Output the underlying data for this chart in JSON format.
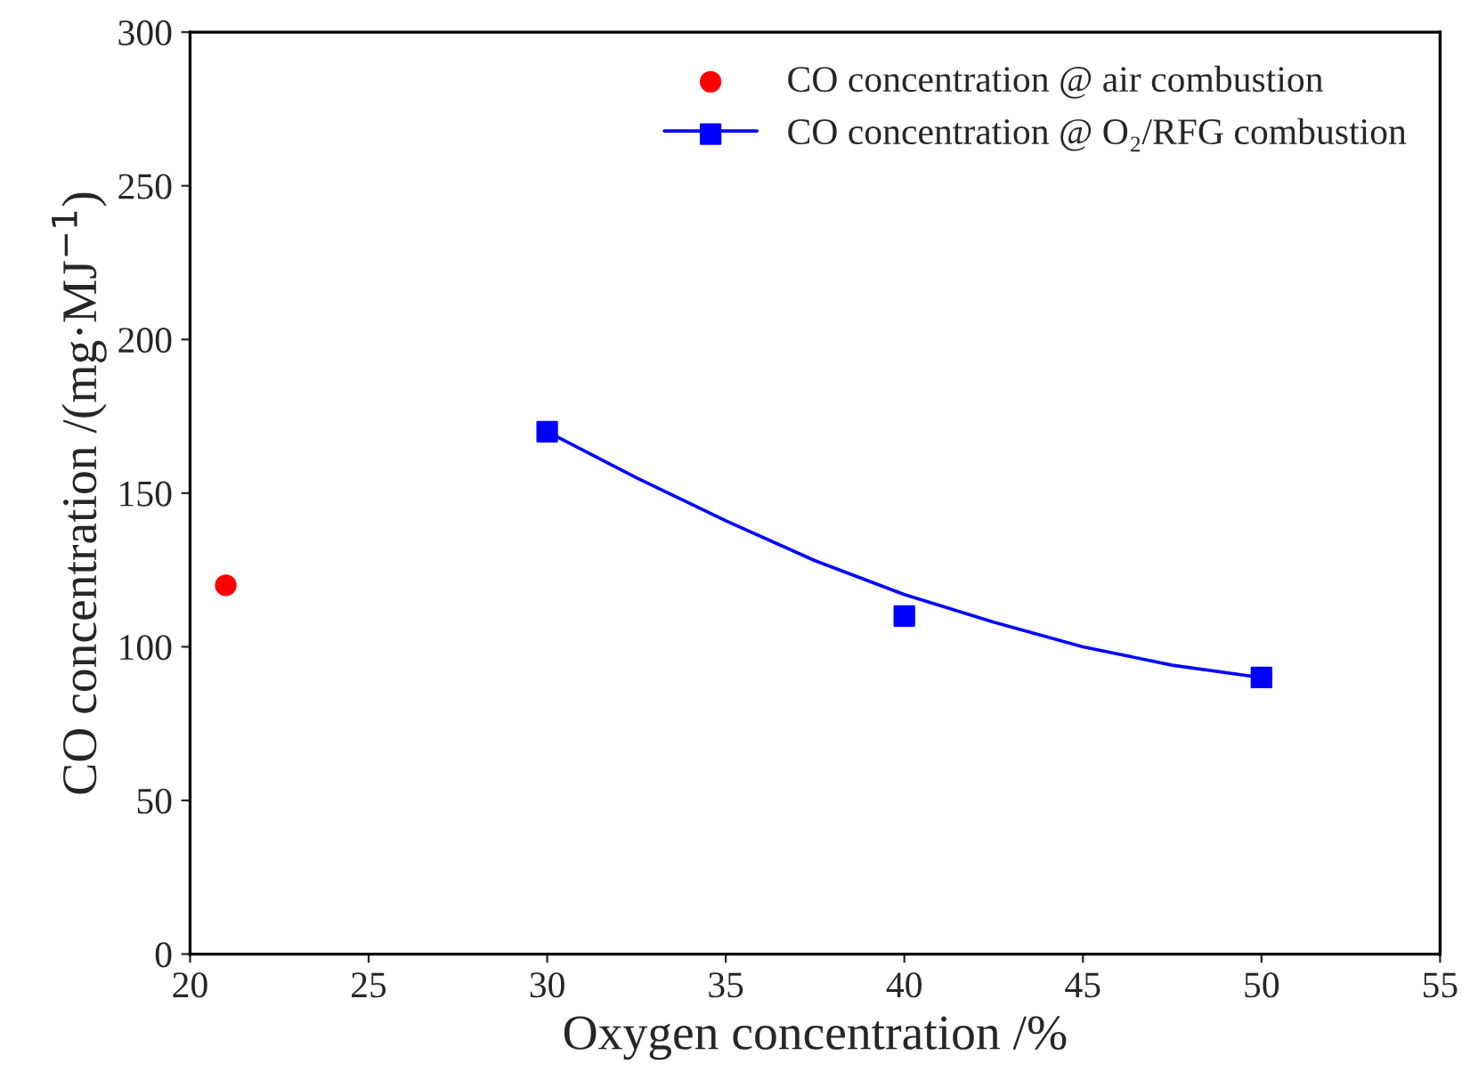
{
  "chart_data": {
    "type": "scatter",
    "xlabel": "Oxygen concentration /%",
    "ylabel": "CO concentration /(mg·MJ$^{−1}$)",
    "xlim": [
      20,
      55
    ],
    "xticks": [
      20,
      25,
      30,
      35,
      40,
      45,
      50,
      55
    ],
    "ylim": [
      0,
      300
    ],
    "yticks": [
      0,
      50,
      100,
      150,
      200,
      250,
      300
    ],
    "grid": false,
    "legend": "top right",
    "series": [
      {
        "name": "CO concentration @ air combustion",
        "marker": "circle",
        "color": "#ff0000",
        "x": [
          21
        ],
        "values": [
          120
        ]
      },
      {
        "name": "CO concentration @ O₂/RFG combustion",
        "marker": "square",
        "color": "#0000ff",
        "x": [
          30,
          40,
          50
        ],
        "values": [
          170,
          110,
          90
        ]
      },
      {
        "type": "line",
        "line_style": "solid",
        "marker": "none",
        "color": "#0000ff",
        "x": [
          30,
          32.5,
          35,
          37.5,
          40,
          42.5,
          45,
          47.5,
          50
        ],
        "values": [
          170,
          155,
          141,
          128,
          117,
          108,
          100,
          94,
          90
        ]
      }
    ]
  }
}
